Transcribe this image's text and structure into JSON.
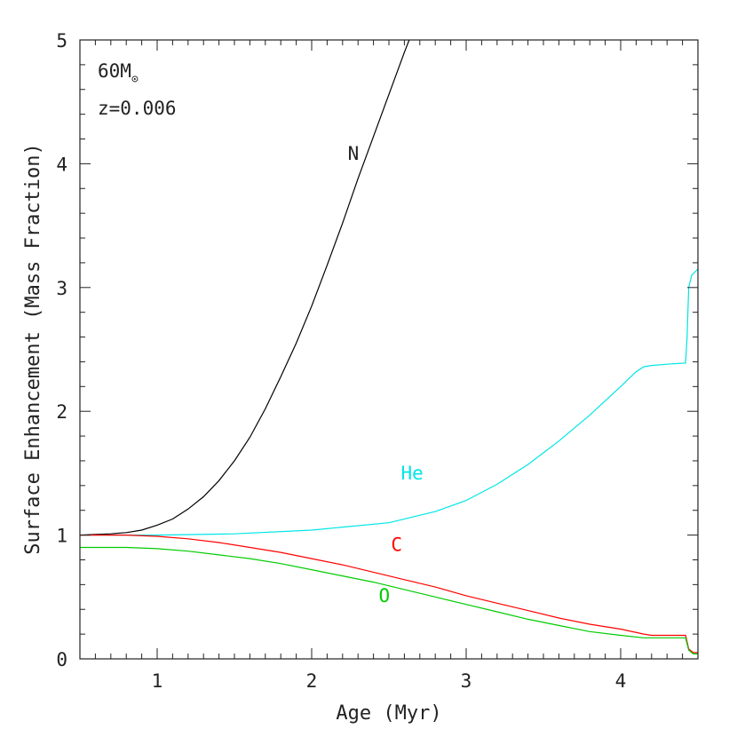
{
  "chart_data": {
    "type": "line",
    "xlabel": "Age (Myr)",
    "ylabel": "Surface Enhancement (Mass Fraction)",
    "xlim": [
      0.5,
      4.5
    ],
    "ylim": [
      0,
      5
    ],
    "x_ticks": [
      1,
      2,
      3,
      4
    ],
    "y_ticks": [
      0,
      1,
      2,
      3,
      4,
      5
    ],
    "x_minor_step": 0.1,
    "y_minor_step": 0.2,
    "grid": false,
    "annotations": {
      "mass": "60M",
      "mass_symbol": "⊙",
      "metallicity": "z=0.006"
    },
    "series": [
      {
        "name": "N",
        "color": "#000000",
        "x": [
          0.5,
          0.7,
          0.8,
          0.9,
          1.0,
          1.1,
          1.2,
          1.3,
          1.4,
          1.5,
          1.6,
          1.7,
          1.8,
          1.9,
          2.0,
          2.1,
          2.2,
          2.3,
          2.4,
          2.5,
          2.6,
          2.7
        ],
        "y": [
          1.0,
          1.01,
          1.02,
          1.04,
          1.08,
          1.13,
          1.21,
          1.31,
          1.44,
          1.6,
          1.79,
          2.02,
          2.28,
          2.55,
          2.85,
          3.18,
          3.52,
          3.88,
          4.22,
          4.56,
          4.9,
          5.22
        ]
      },
      {
        "name": "He",
        "color": "#00e5e5",
        "x": [
          0.5,
          1.0,
          1.5,
          2.0,
          2.5,
          2.8,
          3.0,
          3.2,
          3.4,
          3.6,
          3.8,
          4.0,
          4.1,
          4.15,
          4.2,
          4.3,
          4.42,
          4.43,
          4.44,
          4.46,
          4.5
        ],
        "y": [
          1.0,
          1.0,
          1.01,
          1.04,
          1.1,
          1.19,
          1.28,
          1.41,
          1.57,
          1.76,
          1.97,
          2.2,
          2.32,
          2.36,
          2.37,
          2.38,
          2.39,
          2.6,
          3.0,
          3.1,
          3.15
        ]
      },
      {
        "name": "C",
        "color": "#ff0000",
        "x": [
          0.5,
          0.8,
          1.0,
          1.2,
          1.4,
          1.6,
          1.8,
          2.0,
          2.2,
          2.4,
          2.6,
          2.8,
          3.0,
          3.2,
          3.4,
          3.6,
          3.8,
          4.0,
          4.15,
          4.2,
          4.42,
          4.44,
          4.47,
          4.5
        ],
        "y": [
          1.0,
          1.0,
          0.99,
          0.97,
          0.94,
          0.9,
          0.86,
          0.81,
          0.76,
          0.7,
          0.64,
          0.58,
          0.51,
          0.45,
          0.39,
          0.33,
          0.28,
          0.24,
          0.2,
          0.19,
          0.19,
          0.08,
          0.05,
          0.05
        ]
      },
      {
        "name": "O",
        "color": "#00cc00",
        "x": [
          0.5,
          0.8,
          1.0,
          1.2,
          1.4,
          1.6,
          1.8,
          2.0,
          2.2,
          2.4,
          2.6,
          2.8,
          3.0,
          3.2,
          3.4,
          3.6,
          3.8,
          4.0,
          4.15,
          4.2,
          4.42,
          4.44,
          4.47,
          4.5
        ],
        "y": [
          0.9,
          0.9,
          0.89,
          0.87,
          0.84,
          0.81,
          0.77,
          0.72,
          0.67,
          0.62,
          0.56,
          0.5,
          0.44,
          0.38,
          0.32,
          0.27,
          0.22,
          0.19,
          0.17,
          0.17,
          0.17,
          0.07,
          0.04,
          0.04
        ]
      }
    ],
    "series_labels": [
      {
        "text": "N",
        "x": 2.27,
        "y": 4.03,
        "color": "#222222"
      },
      {
        "text": "He",
        "x": 2.65,
        "y": 1.45,
        "color": "#00e5e5"
      },
      {
        "text": "C",
        "x": 2.55,
        "y": 0.87,
        "color": "#ff0000"
      },
      {
        "text": "O",
        "x": 2.47,
        "y": 0.46,
        "color": "#00cc00"
      }
    ]
  }
}
